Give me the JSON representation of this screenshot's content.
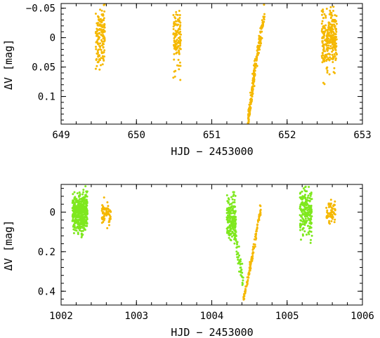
{
  "chart_data": [
    {
      "type": "scatter",
      "xlabel": "HJD − 2453000",
      "ylabel": "ΔV [mag]",
      "xlim": [
        649,
        653
      ],
      "ylim": [
        -0.058,
        0.147
      ],
      "y_inverted": true,
      "xticks": [
        649,
        650,
        651,
        652,
        653
      ],
      "xtick_labels": [
        "649",
        "650",
        "651",
        "652",
        "653"
      ],
      "yticks": [
        -0.05,
        0,
        0.05,
        0.1
      ],
      "ytick_labels": [
        "−0.05",
        "0",
        "0.05",
        "0.1"
      ],
      "grid": false,
      "series": [
        {
          "color": "#f5b800",
          "groups": [
            {
              "kind": "cluster",
              "x_center": 649.52,
              "x_spread": 0.06,
              "y_center": 0.0,
              "y_spread": 0.025,
              "count": 150
            },
            {
              "kind": "cluster",
              "x_center": 650.54,
              "x_spread": 0.05,
              "y_center": 0.0,
              "y_spread": 0.025,
              "count": 120
            },
            {
              "kind": "trend",
              "x_start": 651.48,
              "x_end": 651.58,
              "y_start": 0.145,
              "y_end": 0.045,
              "y_spread": 0.008,
              "count": 130
            },
            {
              "kind": "trend",
              "x_start": 651.58,
              "x_end": 651.7,
              "y_start": 0.045,
              "y_end": -0.04,
              "y_spread": 0.008,
              "count": 90
            },
            {
              "kind": "cluster",
              "x_center": 652.56,
              "x_spread": 0.1,
              "y_center": 0.0,
              "y_spread": 0.025,
              "count": 280
            }
          ]
        }
      ]
    },
    {
      "type": "scatter",
      "xlabel": "HJD − 2453000",
      "ylabel": "ΔV [mag]",
      "xlim": [
        1002,
        1006
      ],
      "ylim": [
        -0.14,
        0.47
      ],
      "y_inverted": true,
      "xticks": [
        1002,
        1003,
        1004,
        1005,
        1006
      ],
      "xtick_labels": [
        "1002",
        "1003",
        "1004",
        "1005",
        "1006"
      ],
      "yticks": [
        0,
        0.2,
        0.4
      ],
      "ytick_labels": [
        "0",
        "0.2",
        "0.4"
      ],
      "grid": false,
      "series": [
        {
          "color": "#7fe81e",
          "groups": [
            {
              "kind": "cluster",
              "x_center": 1002.25,
              "x_spread": 0.1,
              "y_center": 0.0,
              "y_spread": 0.05,
              "count": 450
            },
            {
              "kind": "cluster",
              "x_center": 1004.26,
              "x_spread": 0.06,
              "y_center": 0.03,
              "y_spread": 0.05,
              "count": 180
            },
            {
              "kind": "trend",
              "x_start": 1004.3,
              "x_end": 1004.42,
              "y_start": 0.1,
              "y_end": 0.36,
              "y_spread": 0.03,
              "count": 60
            },
            {
              "kind": "cluster",
              "x_center": 1005.25,
              "x_spread": 0.08,
              "y_center": 0.0,
              "y_spread": 0.06,
              "count": 200
            }
          ]
        },
        {
          "color": "#f5b800",
          "groups": [
            {
              "kind": "cluster",
              "x_center": 1002.6,
              "x_spread": 0.06,
              "y_center": 0.0,
              "y_spread": 0.03,
              "count": 70
            },
            {
              "kind": "trend",
              "x_start": 1004.42,
              "x_end": 1004.5,
              "y_start": 0.44,
              "y_end": 0.3,
              "y_spread": 0.01,
              "count": 40
            },
            {
              "kind": "trend",
              "x_start": 1004.5,
              "x_end": 1004.65,
              "y_start": 0.3,
              "y_end": -0.02,
              "y_spread": 0.015,
              "count": 80
            },
            {
              "kind": "cluster",
              "x_center": 1005.58,
              "x_spread": 0.06,
              "y_center": 0.0,
              "y_spread": 0.03,
              "count": 60
            }
          ]
        }
      ]
    }
  ]
}
